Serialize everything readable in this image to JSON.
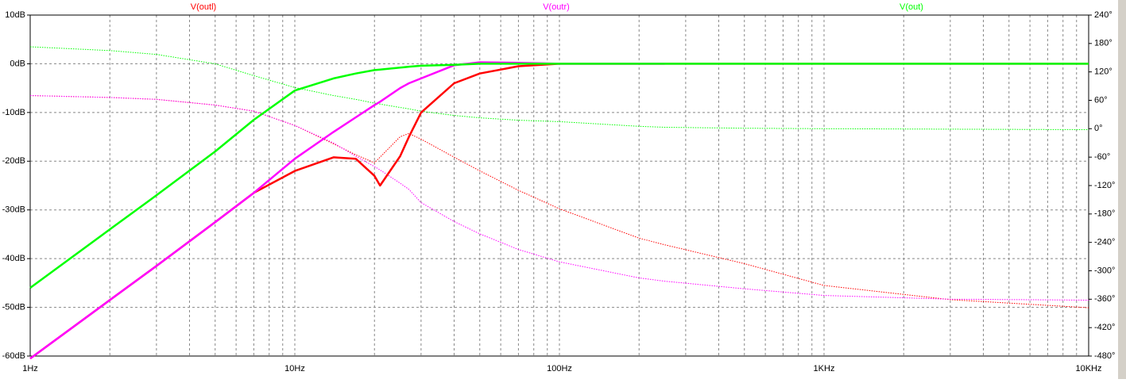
{
  "chart_data": {
    "type": "line",
    "x_log": true,
    "x": [
      1,
      2,
      3,
      5,
      7,
      10,
      14,
      17,
      20,
      21,
      25,
      27,
      30,
      40,
      50,
      70,
      100,
      200,
      250,
      500,
      1000,
      3000,
      10000
    ],
    "xlim": [
      1,
      10000
    ],
    "xticks": [
      {
        "value": 1,
        "label": "1Hz"
      },
      {
        "value": 10,
        "label": "10Hz"
      },
      {
        "value": 100,
        "label": "100Hz"
      },
      {
        "value": 1000,
        "label": "1KHz"
      },
      {
        "value": 10000,
        "label": "10KHz"
      }
    ],
    "x_minor_ticks": [
      2,
      3,
      4,
      5,
      6,
      7,
      8,
      9,
      20,
      30,
      40,
      50,
      60,
      70,
      80,
      90,
      200,
      300,
      400,
      500,
      600,
      700,
      800,
      900,
      2000,
      3000,
      4000,
      5000,
      6000,
      7000,
      8000,
      9000
    ],
    "ylim": [
      -60,
      10
    ],
    "yticks": [
      {
        "value": 10,
        "label": "10dB"
      },
      {
        "value": 0,
        "label": "0dB"
      },
      {
        "value": -10,
        "label": "-10dB"
      },
      {
        "value": -20,
        "label": "-20dB"
      },
      {
        "value": -30,
        "label": "-30dB"
      },
      {
        "value": -40,
        "label": "-40dB"
      },
      {
        "value": -50,
        "label": "-50dB"
      },
      {
        "value": -60,
        "label": "-60dB"
      }
    ],
    "y2lim": [
      -480,
      240
    ],
    "y2ticks": [
      {
        "value": 240,
        "label": "240°"
      },
      {
        "value": 180,
        "label": "180°"
      },
      {
        "value": 120,
        "label": "120°"
      },
      {
        "value": 60,
        "label": "60°"
      },
      {
        "value": 0,
        "label": "0°"
      },
      {
        "value": -60,
        "label": "-60°"
      },
      {
        "value": -120,
        "label": "-120°"
      },
      {
        "value": -180,
        "label": "-180°"
      },
      {
        "value": -240,
        "label": "-240°"
      },
      {
        "value": -300,
        "label": "-300°"
      },
      {
        "value": -360,
        "label": "-360°"
      },
      {
        "value": -420,
        "label": "-420°"
      },
      {
        "value": -480,
        "label": "-480°"
      }
    ],
    "grid": true,
    "series": [
      {
        "name": "V(outl)",
        "color": "#ff0000",
        "values": [
          -60.5,
          -48.5,
          -41.5,
          -32.5,
          -26.5,
          -22,
          -19.2,
          -19.5,
          -23,
          -25,
          -19,
          -15,
          -10,
          -4,
          -2,
          -0.5,
          0,
          0,
          0,
          0,
          0,
          0,
          0
        ]
      },
      {
        "name": "V(outr)",
        "color": "#ff00ff",
        "values": [
          -60.5,
          -48.5,
          -41.5,
          -32.5,
          -26.5,
          -19.5,
          -14,
          -11,
          -8.5,
          -7.8,
          -5,
          -4,
          -3,
          -0.3,
          0.3,
          0.2,
          0,
          0,
          0,
          null,
          null,
          null,
          null
        ]
      },
      {
        "name": "V(out)",
        "color": "#00ff00",
        "values": [
          -46,
          -34,
          -27,
          -18,
          -11.5,
          -5.5,
          -3,
          -2,
          -1.3,
          -1.2,
          -0.8,
          -0.6,
          -0.4,
          -0.2,
          0,
          0,
          0,
          0,
          0,
          0,
          0,
          0,
          0
        ]
      }
    ],
    "phase_series": [
      {
        "color": "#ff0000",
        "axis": "y2",
        "values": [
          70,
          66,
          62,
          50,
          37,
          7,
          -32,
          -55,
          -72,
          -60,
          -17,
          -10,
          -22,
          -60,
          -89,
          -130,
          -169,
          -231,
          -245,
          -285,
          -331,
          -361,
          -378
        ]
      },
      {
        "color": "#ff00ff",
        "axis": "y2",
        "values": [
          70,
          66,
          62,
          50,
          37,
          7,
          -30,
          -58,
          -80,
          -87,
          -115,
          -128,
          -156,
          -196,
          -222,
          -255,
          -281,
          -315,
          -322,
          -338,
          -352,
          -360,
          -362
        ]
      },
      {
        "color": "#00ff00",
        "axis": "y2",
        "values": [
          173,
          165,
          157,
          137,
          112,
          87,
          70,
          62,
          54,
          52,
          45,
          42,
          37,
          28,
          23,
          18,
          15,
          5,
          3,
          1,
          0,
          -1,
          -2
        ]
      }
    ]
  }
}
